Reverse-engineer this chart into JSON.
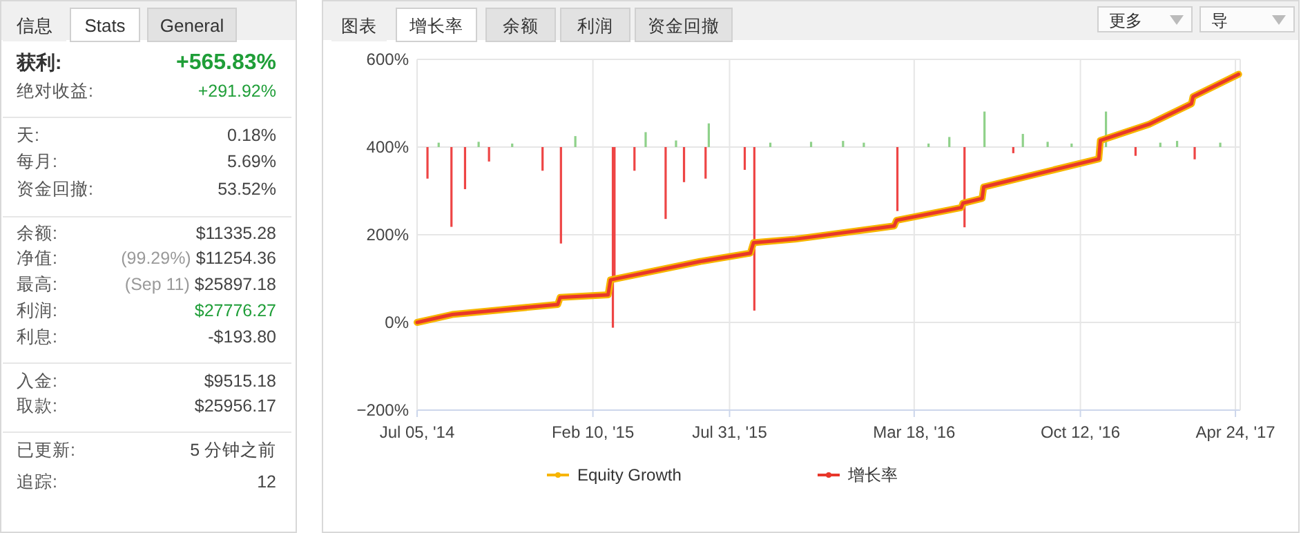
{
  "chart_data": [
    {
      "type": "other",
      "annotations": [
        "信息",
        "Stats",
        "General",
        "获利:",
        "+565.83%",
        "绝对收益:",
        "+291.92%",
        "天:",
        "0.18%",
        "每月:",
        "5.69%",
        "资金回撤:",
        "53.52%",
        "余额:",
        "$11335.28",
        "净值:",
        "(99.29%) $11254.36",
        "最高:",
        "(Sep 11) $25897.18",
        "利润:",
        "$27776.27",
        "利息:",
        "-$193.80",
        "入金:",
        "$9515.18",
        "取款:",
        "$25956.17",
        "已更新:",
        "5 分钟之前",
        "追踪:",
        "12"
      ]
    },
    {
      "type": "line",
      "annotations": [
        "图表",
        "增长率",
        "余额",
        "利润",
        "资金回撤",
        "更多",
        "导"
      ],
      "xlim": [
        "2014-07-05",
        "2017-04-30"
      ],
      "xticks": [
        {
          "value": "2014-07-05",
          "label": "Jul 05, '14"
        },
        {
          "value": "2015-02-10",
          "label": "Feb 10, '15"
        },
        {
          "value": "2015-07-31",
          "label": "Jul 31, '15"
        },
        {
          "value": "2016-03-18",
          "label": "Mar 18, '16"
        },
        {
          "value": "2016-10-12",
          "label": "Oct 12, '16"
        },
        {
          "value": "2017-04-24",
          "label": "Apr 24, '17"
        }
      ],
      "ylim": [
        -200,
        600
      ],
      "yticks": [
        {
          "value": -200,
          "label": "−200%"
        },
        {
          "value": 0,
          "label": "0%"
        },
        {
          "value": 200,
          "label": "200%"
        },
        {
          "value": 400,
          "label": "400%"
        },
        {
          "value": 600,
          "label": "600%"
        }
      ],
      "grid": true,
      "legend": "bottom",
      "series": [
        {
          "type": "bar",
          "x": [
            "2014-07-18",
            "2014-08-01",
            "2014-08-17",
            "2014-09-03",
            "2014-09-20",
            "2014-10-03",
            "2014-11-01",
            "2014-12-09",
            "2015-01-01",
            "2015-01-19",
            "2015-03-07",
            "2015-03-09",
            "2015-04-03",
            "2015-04-17",
            "2015-05-12",
            "2015-05-25",
            "2015-06-04",
            "2015-07-01",
            "2015-07-05",
            "2015-08-19",
            "2015-08-31",
            "2015-09-20",
            "2015-11-10",
            "2015-12-20",
            "2016-01-15",
            "2016-02-26",
            "2016-04-05",
            "2016-05-01",
            "2016-05-20",
            "2016-06-14",
            "2016-07-20",
            "2016-08-01",
            "2016-09-01",
            "2016-10-01",
            "2016-11-13",
            "2016-12-20",
            "2017-01-20",
            "2017-02-10",
            "2017-03-04",
            "2017-04-05"
          ],
          "values": [
            -72,
            10,
            -182,
            -96,
            12,
            -33,
            8,
            -54,
            -220,
            25,
            -412,
            -301,
            -54,
            34,
            -164,
            15,
            -80,
            -72,
            54,
            -52,
            -373,
            10,
            12,
            14,
            10,
            -146,
            8,
            23,
            -183,
            81,
            -14,
            30,
            12,
            8,
            81,
            -20,
            10,
            14,
            -28,
            10
          ],
          "base": [
            400,
            400,
            400,
            400,
            400,
            400,
            400,
            400,
            400,
            400,
            400,
            400,
            400,
            400,
            400,
            400,
            400,
            400,
            400,
            400,
            400,
            400,
            400,
            400,
            400,
            400,
            400,
            400,
            400,
            400,
            400,
            400,
            400,
            400,
            400,
            400,
            400,
            400,
            400,
            400
          ],
          "colors": [
            "#ee4545",
            "#8fd18a",
            "#ee4545",
            "#ee4545",
            "#8fd18a",
            "#ee4545",
            "#8fd18a",
            "#ee4545",
            "#ee4545",
            "#8fd18a",
            "#ee4545",
            "#ee4545",
            "#ee4545",
            "#8fd18a",
            "#ee4545",
            "#8fd18a",
            "#ee4545",
            "#ee4545",
            "#8fd18a",
            "#ee4545",
            "#ee4545",
            "#8fd18a",
            "#8fd18a",
            "#8fd18a",
            "#8fd18a",
            "#ee4545",
            "#8fd18a",
            "#8fd18a",
            "#ee4545",
            "#8fd18a",
            "#ee4545",
            "#8fd18a",
            "#8fd18a",
            "#8fd18a",
            "#8fd18a",
            "#ee4545",
            "#8fd18a",
            "#8fd18a",
            "#ee4545",
            "#8fd18a"
          ]
        },
        {
          "name": "Equity Growth",
          "color": "#f7b500",
          "x": [
            "2014-07-05",
            "2014-08-18",
            "2014-12-28",
            "2014-12-31",
            "2015-03-01",
            "2015-03-04",
            "2015-06-24",
            "2015-08-26",
            "2015-08-30",
            "2015-10-21",
            "2016-02-22",
            "2016-02-25",
            "2016-05-16",
            "2016-05-18",
            "2016-06-11",
            "2016-06-13",
            "2016-11-04",
            "2016-11-06",
            "2017-01-06",
            "2017-02-28",
            "2017-03-02",
            "2017-04-28"
          ],
          "values": [
            0,
            18,
            41,
            57,
            63,
            97,
            139,
            158,
            182,
            190,
            220,
            233,
            262,
            272,
            283,
            309,
            373,
            415,
            452,
            499,
            515,
            566
          ]
        },
        {
          "name": "增长率",
          "color": "#e8372a",
          "x": [
            "2014-07-05",
            "2014-08-18",
            "2014-12-28",
            "2014-12-31",
            "2015-03-01",
            "2015-03-04",
            "2015-06-24",
            "2015-08-26",
            "2015-08-30",
            "2015-10-21",
            "2016-02-22",
            "2016-02-25",
            "2016-05-16",
            "2016-05-18",
            "2016-06-11",
            "2016-06-13",
            "2016-11-04",
            "2016-11-06",
            "2017-01-06",
            "2017-02-28",
            "2017-03-02",
            "2017-04-28"
          ],
          "values": [
            0,
            18,
            41,
            57,
            63,
            97,
            139,
            158,
            182,
            190,
            220,
            233,
            262,
            272,
            283,
            309,
            373,
            415,
            452,
            499,
            515,
            566
          ]
        }
      ]
    }
  ]
}
